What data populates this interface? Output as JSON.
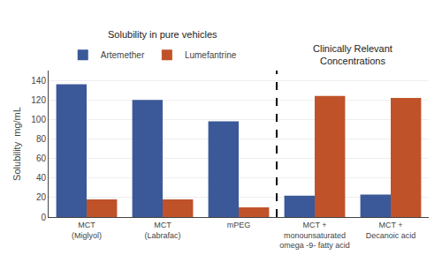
{
  "chart_data": {
    "type": "bar",
    "annotations": [
      "Solubility in pure vehicles",
      "Clinically Relevant\nConcentrations"
    ],
    "categories": [
      "MCT\n(Miglyol)",
      "MCT\n(Labrafac)",
      "mPEG",
      "MCT +\nmonounsaturated\nomega -9- fatty acid",
      "MCT +\nDecanoic acid"
    ],
    "series": [
      {
        "name": "Artemether",
        "color": "#3B5998",
        "values": [
          136,
          120,
          98,
          22,
          23
        ]
      },
      {
        "name": "Lumefantrine",
        "color": "#C0522A",
        "values": [
          18,
          18,
          10,
          124,
          122
        ]
      }
    ],
    "ylabel": "Solubility  mg/mL",
    "ylim": [
      0,
      150
    ],
    "yticks": [
      0,
      20,
      40,
      60,
      80,
      100,
      120,
      140
    ],
    "grid": true,
    "legend": "top"
  }
}
